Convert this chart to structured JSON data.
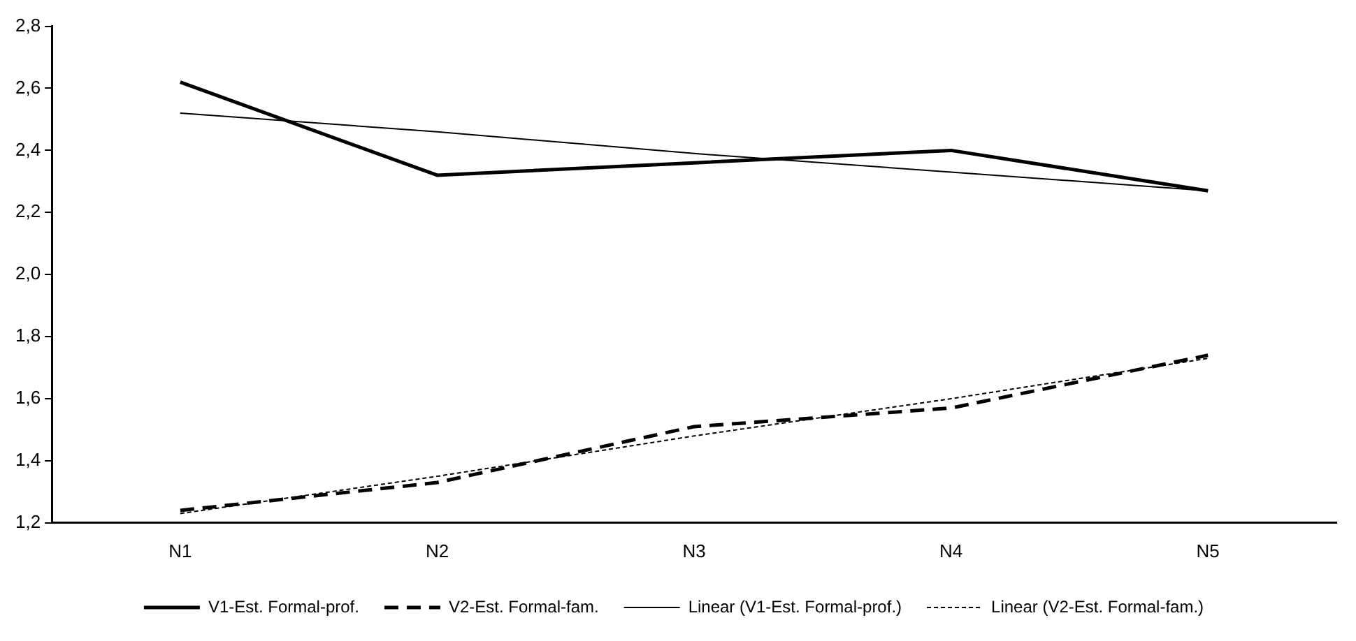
{
  "chart_data": {
    "type": "line",
    "categories": [
      "N1",
      "N2",
      "N3",
      "N4",
      "N5"
    ],
    "ylim": [
      1.2,
      2.8
    ],
    "yticks": [
      {
        "value": 1.2,
        "label": "1,2"
      },
      {
        "value": 1.4,
        "label": "1,4"
      },
      {
        "value": 1.6,
        "label": "1,6"
      },
      {
        "value": 1.8,
        "label": "1,8"
      },
      {
        "value": 2.0,
        "label": "2,0"
      },
      {
        "value": 2.2,
        "label": "2,2"
      },
      {
        "value": 2.4,
        "label": "2,4"
      },
      {
        "value": 2.6,
        "label": "2,6"
      },
      {
        "value": 2.8,
        "label": "2,8"
      }
    ],
    "grid": false,
    "legend": "bottom",
    "marker": "none",
    "series": [
      {
        "name": "V1-Est. Formal-prof.",
        "color": "#000000",
        "line_style": "solid",
        "values": [
          2.62,
          2.32,
          2.36,
          2.4,
          2.27
        ]
      },
      {
        "name": "V2-Est. Formal-fam.",
        "color": "#000000",
        "line_style": "dashed",
        "values": [
          1.24,
          1.33,
          1.51,
          1.57,
          1.74
        ]
      },
      {
        "name": "Linear (V1-Est. Formal-prof.)",
        "color": "#000000",
        "line_style": "solid",
        "values": [
          2.52,
          2.46,
          2.39,
          2.33,
          2.27
        ]
      },
      {
        "name": "Linear (V2-Est. Formal-fam.)",
        "color": "#000000",
        "line_style": "dotted",
        "values": [
          1.23,
          1.35,
          1.48,
          1.6,
          1.73
        ]
      }
    ]
  }
}
